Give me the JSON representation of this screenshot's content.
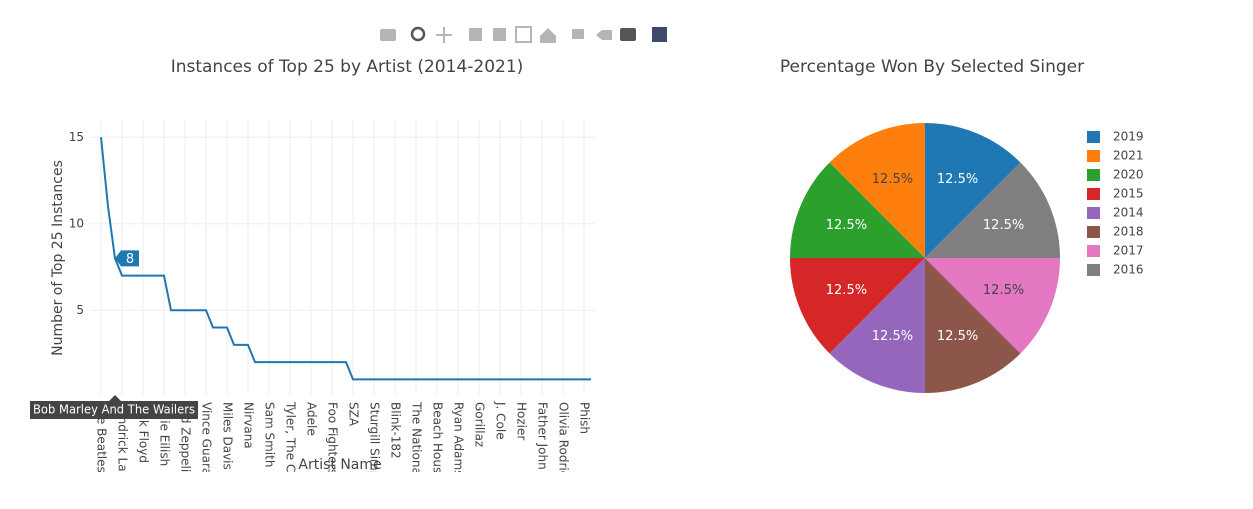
{
  "chart_data": [
    {
      "type": "line",
      "title": "Instances of Top 25 by Artist (2014-2021)",
      "x_label": "Artist Name",
      "y_label": "Number of Top 25 Instances",
      "categories": [
        "The Beatles",
        null,
        "Bob Marley And The Wailers",
        "Kendrick Lamar",
        null,
        null,
        "Pink Floyd",
        null,
        null,
        "Billie Eilish",
        null,
        null,
        "Led Zeppelin",
        null,
        null,
        "Vince Guaraldi Trio",
        null,
        null,
        "Miles Davis",
        null,
        null,
        "Nirvana",
        null,
        null,
        "Sam Smith",
        null,
        null,
        "Tyler, The Creator",
        null,
        null,
        "Adele",
        null,
        null,
        "Foo Fighters",
        null,
        null,
        "SZA",
        null,
        null,
        "Sturgill Simpson",
        null,
        null,
        "Blink-182",
        null,
        null,
        "The National",
        null,
        null,
        "Beach House",
        null,
        null,
        "Ryan Adams",
        null,
        null,
        "Gorillaz",
        null,
        null,
        "J. Cole",
        null,
        null,
        "Hozier",
        null,
        null,
        "Father John Misty",
        null,
        null,
        "Olivia Rodrigo",
        null,
        null,
        "Phish",
        null
      ],
      "values": [
        15,
        11,
        8,
        7,
        7,
        7,
        7,
        7,
        7,
        7,
        5,
        5,
        5,
        5,
        5,
        5,
        4,
        4,
        4,
        3,
        3,
        3,
        2,
        2,
        2,
        2,
        2,
        2,
        2,
        2,
        2,
        2,
        2,
        2,
        2,
        2,
        1,
        1,
        1,
        1,
        1,
        1,
        1,
        1,
        1,
        1,
        1,
        1,
        1,
        1,
        1,
        1,
        1,
        1,
        1,
        1,
        1,
        1,
        1,
        1,
        1,
        1,
        1,
        1,
        1,
        1,
        1,
        1,
        1,
        1,
        1
      ],
      "color": "#1f77b4",
      "ylim": [
        0.1,
        16
      ],
      "yticks": [
        5,
        10,
        15
      ],
      "xtick_step": 3,
      "hover_index": 2,
      "grid": true
    },
    {
      "type": "pie",
      "title": "Percentage Won By Selected Singer",
      "labels": [
        "2019",
        "2021",
        "2020",
        "2015",
        "2014",
        "2018",
        "2017",
        "2016"
      ],
      "values": [
        12.5,
        12.5,
        12.5,
        12.5,
        12.5,
        12.5,
        12.5,
        12.5
      ],
      "value_labels": [
        "12.5%",
        "12.5%",
        "12.5%",
        "12.5%",
        "12.5%",
        "12.5%",
        "12.5%",
        "12.5%"
      ],
      "colors": [
        "#1f77b4",
        "#ff7f0e",
        "#2ca02c",
        "#d62728",
        "#9467bd",
        "#8c564b",
        "#e377c2",
        "#7f7f7f"
      ],
      "legend": "right"
    }
  ]
}
